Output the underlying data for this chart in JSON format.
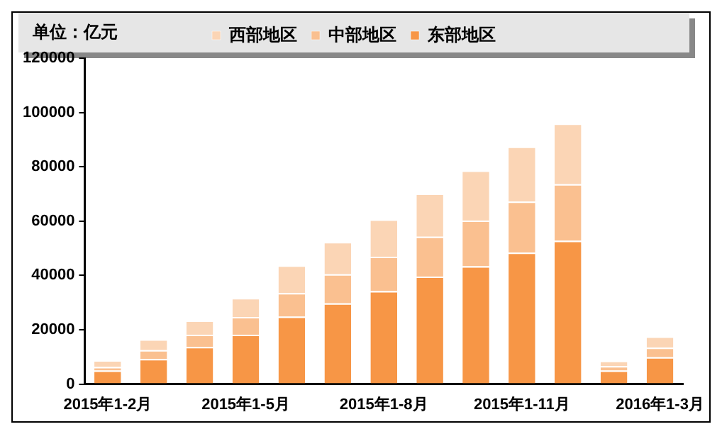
{
  "chart_data": {
    "type": "bar",
    "stacked": true,
    "categories": [
      "2015年1-2月",
      null,
      null,
      "2015年1-5月",
      null,
      null,
      "2015年1-8月",
      null,
      null,
      "2015年1-11月",
      null,
      null,
      "2016年1-3月"
    ],
    "series": [
      {
        "name": "东部地区",
        "color": "#f79646",
        "values": [
          5000,
          9200,
          13700,
          18200,
          24800,
          29700,
          34200,
          39600,
          43400,
          48400,
          52800,
          5000,
          9900
        ]
      },
      {
        "name": "中部地区",
        "color": "#fac090",
        "values": [
          1300,
          3300,
          4500,
          6500,
          8700,
          10700,
          12700,
          14700,
          16800,
          18800,
          20800,
          1600,
          3500
        ]
      },
      {
        "name": "西部地区",
        "color": "#fbd5b5",
        "values": [
          2500,
          4000,
          5200,
          7000,
          10200,
          11900,
          13700,
          15800,
          18400,
          20200,
          22300,
          2000,
          4100
        ]
      }
    ],
    "ylim": [
      0,
      120000
    ],
    "yticks": [
      0,
      20000,
      40000,
      60000,
      80000,
      100000,
      120000
    ],
    "grid": false,
    "legend": "top",
    "annotations": [
      "单位：亿元"
    ]
  }
}
